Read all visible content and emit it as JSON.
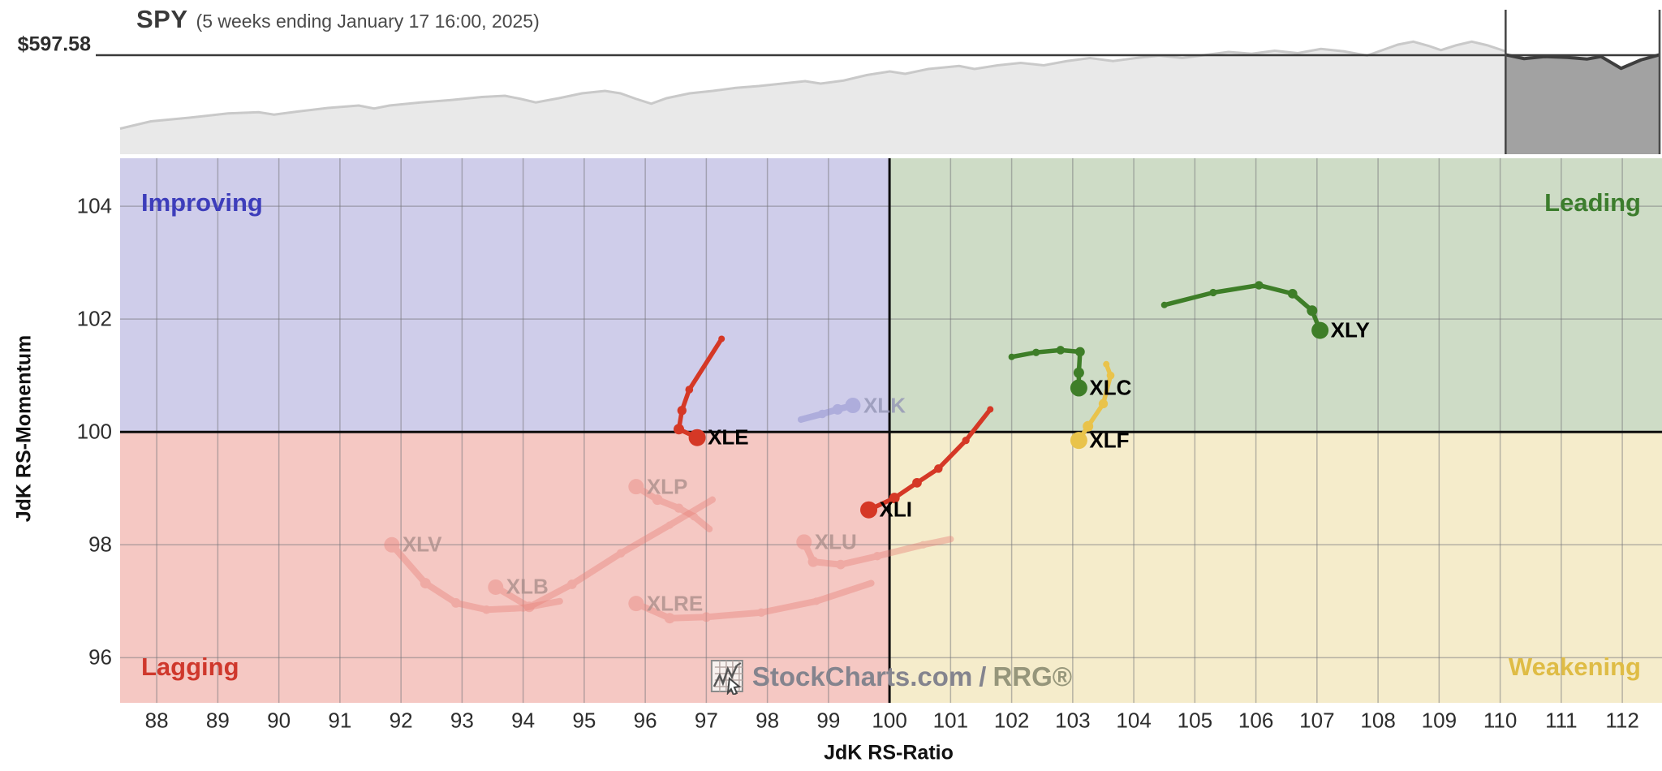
{
  "header": {
    "symbol": "SPY",
    "subtitle": "(5 weeks ending January 17 16:00, 2025)",
    "price_label": "$597.58"
  },
  "watermark": {
    "brand": "StockCharts.com",
    "sep": "/",
    "suffix": "RRG®"
  },
  "chart_data": [
    {
      "type": "area",
      "title": "SPY",
      "subtitle": "(5 weeks ending January 17 16:00, 2025)",
      "last_price": 597.58,
      "price_label": "$597.58",
      "highlight_note": "last 5 weeks shaded dark",
      "highlight_from": 0.9,
      "line_level": 0.187,
      "points": [
        [
          0.0,
          0.79
        ],
        [
          0.02,
          0.73
        ],
        [
          0.045,
          0.7
        ],
        [
          0.07,
          0.665
        ],
        [
          0.09,
          0.655
        ],
        [
          0.1,
          0.675
        ],
        [
          0.115,
          0.65
        ],
        [
          0.135,
          0.62
        ],
        [
          0.155,
          0.6
        ],
        [
          0.165,
          0.625
        ],
        [
          0.175,
          0.6
        ],
        [
          0.195,
          0.575
        ],
        [
          0.215,
          0.555
        ],
        [
          0.235,
          0.53
        ],
        [
          0.25,
          0.52
        ],
        [
          0.26,
          0.545
        ],
        [
          0.27,
          0.575
        ],
        [
          0.285,
          0.54
        ],
        [
          0.3,
          0.5
        ],
        [
          0.315,
          0.48
        ],
        [
          0.325,
          0.5
        ],
        [
          0.335,
          0.545
        ],
        [
          0.345,
          0.585
        ],
        [
          0.355,
          0.54
        ],
        [
          0.37,
          0.5
        ],
        [
          0.385,
          0.48
        ],
        [
          0.4,
          0.455
        ],
        [
          0.415,
          0.44
        ],
        [
          0.43,
          0.42
        ],
        [
          0.445,
          0.4
        ],
        [
          0.455,
          0.42
        ],
        [
          0.47,
          0.395
        ],
        [
          0.485,
          0.35
        ],
        [
          0.5,
          0.32
        ],
        [
          0.51,
          0.34
        ],
        [
          0.525,
          0.3
        ],
        [
          0.545,
          0.275
        ],
        [
          0.555,
          0.3
        ],
        [
          0.57,
          0.27
        ],
        [
          0.585,
          0.25
        ],
        [
          0.6,
          0.27
        ],
        [
          0.615,
          0.235
        ],
        [
          0.63,
          0.21
        ],
        [
          0.645,
          0.235
        ],
        [
          0.66,
          0.21
        ],
        [
          0.675,
          0.19
        ],
        [
          0.69,
          0.21
        ],
        [
          0.705,
          0.185
        ],
        [
          0.72,
          0.16
        ],
        [
          0.735,
          0.175
        ],
        [
          0.75,
          0.15
        ],
        [
          0.765,
          0.17
        ],
        [
          0.78,
          0.135
        ],
        [
          0.795,
          0.155
        ],
        [
          0.81,
          0.19
        ],
        [
          0.82,
          0.145
        ],
        [
          0.83,
          0.1
        ],
        [
          0.84,
          0.075
        ],
        [
          0.85,
          0.11
        ],
        [
          0.858,
          0.145
        ],
        [
          0.868,
          0.105
        ],
        [
          0.878,
          0.075
        ],
        [
          0.888,
          0.105
        ],
        [
          0.9,
          0.155
        ]
      ],
      "highlight_points": [
        [
          0.9,
          0.183
        ],
        [
          0.912,
          0.215
        ],
        [
          0.925,
          0.198
        ],
        [
          0.94,
          0.205
        ],
        [
          0.953,
          0.218
        ],
        [
          0.962,
          0.198
        ],
        [
          0.975,
          0.295
        ],
        [
          0.988,
          0.225
        ],
        [
          1.0,
          0.183
        ]
      ]
    },
    {
      "type": "scatter",
      "name": "Relative Rotation Graph",
      "xlabel": "JdK RS-Ratio",
      "ylabel": "JdK RS-Momentum",
      "xlim": [
        87.4,
        112.65
      ],
      "ylim": [
        95.2,
        104.85
      ],
      "xticks": [
        88,
        89,
        90,
        91,
        92,
        93,
        94,
        95,
        96,
        97,
        98,
        99,
        100,
        101,
        102,
        103,
        104,
        105,
        106,
        107,
        108,
        109,
        110,
        111,
        112
      ],
      "yticks": [
        96,
        98,
        100,
        102,
        104
      ],
      "grid": true,
      "quadrants": [
        {
          "name": "Improving",
          "label_color": "#3d3dbb",
          "bg": "#cfcdea",
          "position": "top-left"
        },
        {
          "name": "Leading",
          "label_color": "#3c7d2d",
          "bg": "#cedcc6",
          "position": "top-right"
        },
        {
          "name": "Lagging",
          "label_color": "#cf382c",
          "bg": "#f5c8c3",
          "position": "bottom-left"
        },
        {
          "name": "Weakening",
          "label_color": "#dfbc45",
          "bg": "#f5eccb",
          "position": "bottom-right"
        }
      ],
      "series": [
        {
          "name": "XLV",
          "status": "faded",
          "color": "#e8827a",
          "opacity": 0.42,
          "label_color": "#ac8f8c",
          "points": [
            [
              94.6,
              97.0
            ],
            [
              94.0,
              96.88
            ],
            [
              93.4,
              96.85
            ],
            [
              92.9,
              96.97
            ],
            [
              92.4,
              97.32
            ],
            [
              91.85,
              98.0
            ]
          ]
        },
        {
          "name": "XLB",
          "status": "faded",
          "color": "#e8827a",
          "opacity": 0.42,
          "label_color": "#ac8f8c",
          "points": [
            [
              97.1,
              98.8
            ],
            [
              96.4,
              98.35
            ],
            [
              95.6,
              97.85
            ],
            [
              94.8,
              97.3
            ],
            [
              94.1,
              96.9
            ],
            [
              93.55,
              97.25
            ]
          ]
        },
        {
          "name": "XLRE",
          "status": "faded",
          "color": "#e8827a",
          "opacity": 0.42,
          "label_color": "#ac8f8c",
          "points": [
            [
              99.7,
              97.32
            ],
            [
              98.8,
              97.0
            ],
            [
              97.9,
              96.8
            ],
            [
              97.0,
              96.72
            ],
            [
              96.4,
              96.7
            ],
            [
              95.85,
              96.96
            ]
          ]
        },
        {
          "name": "XLU",
          "status": "faded",
          "color": "#e8827a",
          "opacity": 0.42,
          "label_color": "#ac8f8c",
          "points": [
            [
              101.0,
              98.1
            ],
            [
              100.55,
              98.0
            ],
            [
              99.8,
              97.8
            ],
            [
              99.2,
              97.65
            ],
            [
              98.75,
              97.7
            ],
            [
              98.6,
              98.05
            ]
          ]
        },
        {
          "name": "XLP",
          "status": "faded",
          "color": "#e8827a",
          "opacity": 0.42,
          "label_color": "#ac8f8c",
          "points": [
            [
              97.05,
              98.28
            ],
            [
              96.8,
              98.5
            ],
            [
              96.55,
              98.65
            ],
            [
              96.2,
              98.8
            ],
            [
              95.85,
              99.03
            ]
          ]
        },
        {
          "name": "XLK",
          "status": "faded",
          "color": "#8888cc",
          "opacity": 0.45,
          "label_color": "#9495b5",
          "points": [
            [
              98.55,
              100.22
            ],
            [
              98.9,
              100.32
            ],
            [
              99.15,
              100.4
            ],
            [
              99.4,
              100.47
            ]
          ]
        },
        {
          "name": "XLE",
          "status": "active",
          "color": "#d53826",
          "opacity": 1,
          "label_color": "#000000",
          "points": [
            [
              97.25,
              101.65
            ],
            [
              96.72,
              100.75
            ],
            [
              96.6,
              100.38
            ],
            [
              96.55,
              100.05
            ],
            [
              96.85,
              99.9
            ]
          ]
        },
        {
          "name": "XLI",
          "status": "active",
          "color": "#d53826",
          "opacity": 1,
          "label_color": "#000000",
          "points": [
            [
              101.65,
              100.4
            ],
            [
              101.25,
              99.85
            ],
            [
              100.8,
              99.35
            ],
            [
              100.45,
              99.1
            ],
            [
              100.08,
              98.83
            ],
            [
              99.66,
              98.62
            ]
          ]
        },
        {
          "name": "XLC",
          "status": "active",
          "color": "#3e7e28",
          "opacity": 1,
          "label_color": "#000000",
          "points": [
            [
              102.0,
              101.33
            ],
            [
              102.4,
              101.41
            ],
            [
              102.8,
              101.45
            ],
            [
              103.12,
              101.42
            ],
            [
              103.1,
              101.05
            ],
            [
              103.1,
              100.78
            ]
          ]
        },
        {
          "name": "XLY",
          "status": "active",
          "color": "#3e7e28",
          "opacity": 1,
          "label_color": "#000000",
          "points": [
            [
              104.5,
              102.25
            ],
            [
              105.3,
              102.47
            ],
            [
              106.05,
              102.6
            ],
            [
              106.6,
              102.45
            ],
            [
              106.92,
              102.15
            ],
            [
              107.05,
              101.8
            ]
          ]
        },
        {
          "name": "XLF",
          "status": "active",
          "color": "#e9c34b",
          "opacity": 1,
          "label_color": "#000000",
          "points": [
            [
              103.55,
              101.2
            ],
            [
              103.62,
              101.0
            ],
            [
              103.5,
              100.5
            ],
            [
              103.25,
              100.1
            ],
            [
              103.1,
              99.85
            ]
          ]
        }
      ]
    }
  ]
}
